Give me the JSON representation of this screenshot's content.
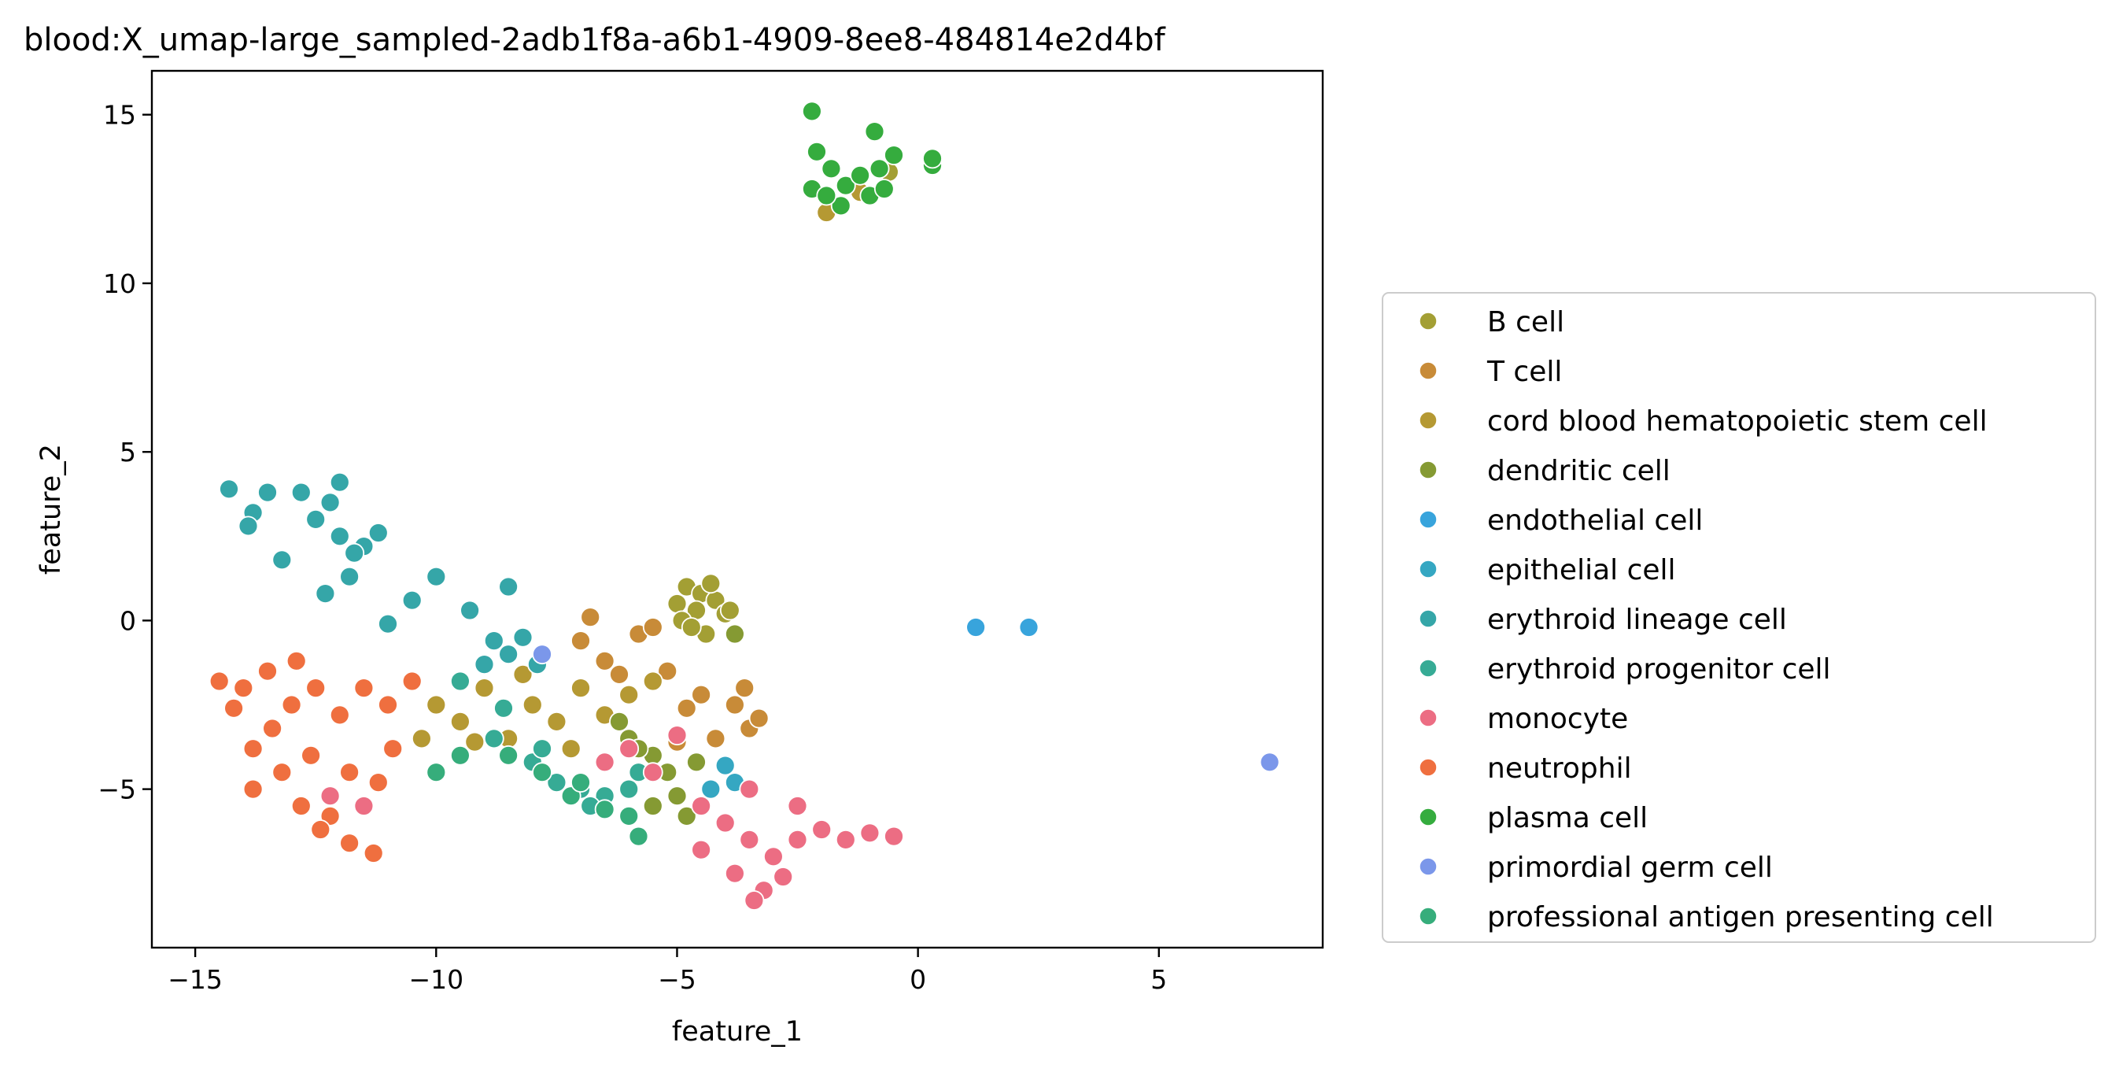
{
  "chart_data": {
    "type": "scatter",
    "title": "blood:X_umap-large_sampled-2adb1f8a-a6b1-4909-8ee8-484814e2d4bf",
    "xlabel": "feature_1",
    "ylabel": "feature_2",
    "xlim": [
      -15.9,
      8.4
    ],
    "ylim": [
      -9.7,
      16.3
    ],
    "xticks": [
      -15,
      -10,
      -5,
      0,
      5
    ],
    "yticks": [
      15,
      10,
      5,
      0,
      -5
    ],
    "xtick_labels": [
      "−15",
      "−10",
      "−5",
      "0",
      "5"
    ],
    "ytick_labels": [
      "15",
      "10",
      "5",
      "0",
      "−5"
    ],
    "grid": false,
    "legend_position": "right",
    "series": [
      {
        "name": "B cell",
        "color": "#a39f34",
        "points": [
          [
            -4.8,
            1.0
          ],
          [
            -4.5,
            0.8
          ],
          [
            -4.2,
            0.6
          ],
          [
            -4.6,
            0.3
          ],
          [
            -4.0,
            0.2
          ],
          [
            -5.0,
            0.5
          ],
          [
            -4.3,
            1.1
          ],
          [
            -4.9,
            0.0
          ],
          [
            -4.4,
            -0.4
          ],
          [
            -0.6,
            13.3
          ],
          [
            -3.9,
            0.3
          ],
          [
            -4.7,
            -0.2
          ]
        ]
      },
      {
        "name": "T cell",
        "color": "#c88b38",
        "points": [
          [
            -7.0,
            -0.6
          ],
          [
            -6.5,
            -1.2
          ],
          [
            -5.8,
            -0.4
          ],
          [
            -5.2,
            -1.5
          ],
          [
            -4.5,
            -2.2
          ],
          [
            -3.8,
            -2.5
          ],
          [
            -3.5,
            -3.2
          ],
          [
            -4.2,
            -3.5
          ],
          [
            -6.8,
            0.1
          ],
          [
            -5.5,
            -0.2
          ],
          [
            -6.2,
            -1.6
          ],
          [
            -3.6,
            -2.0
          ],
          [
            -4.8,
            -2.6
          ],
          [
            -5.0,
            -3.6
          ],
          [
            -3.3,
            -2.9
          ]
        ]
      },
      {
        "name": "cord blood hematopoietic stem cell",
        "color": "#b59933",
        "points": [
          [
            -10.0,
            -2.5
          ],
          [
            -9.5,
            -3.0
          ],
          [
            -9.0,
            -2.0
          ],
          [
            -8.5,
            -3.5
          ],
          [
            -8.0,
            -2.5
          ],
          [
            -7.5,
            -3.0
          ],
          [
            -7.0,
            -2.0
          ],
          [
            -6.5,
            -2.8
          ],
          [
            -6.0,
            -2.2
          ],
          [
            -5.5,
            -1.8
          ],
          [
            -9.2,
            -3.6
          ],
          [
            -8.2,
            -1.6
          ],
          [
            -10.3,
            -3.5
          ],
          [
            -7.2,
            -3.8
          ],
          [
            -1.9,
            12.1
          ],
          [
            -1.2,
            12.7
          ]
        ]
      },
      {
        "name": "dendritic cell",
        "color": "#859a33",
        "points": [
          [
            -6.0,
            -3.5
          ],
          [
            -5.5,
            -4.0
          ],
          [
            -5.2,
            -4.5
          ],
          [
            -5.0,
            -5.2
          ],
          [
            -4.8,
            -5.8
          ],
          [
            -5.5,
            -5.5
          ],
          [
            -6.2,
            -3.0
          ],
          [
            -4.3,
            -5.0
          ],
          [
            -5.8,
            -3.8
          ],
          [
            -3.8,
            -0.4
          ],
          [
            -4.6,
            -4.2
          ]
        ]
      },
      {
        "name": "endothelial cell",
        "color": "#38a4dc",
        "points": [
          [
            1.2,
            -0.2
          ],
          [
            2.3,
            -0.2
          ]
        ]
      },
      {
        "name": "epithelial cell",
        "color": "#35a7c2",
        "points": [
          [
            -4.0,
            -4.3
          ],
          [
            -4.3,
            -5.0
          ],
          [
            -3.8,
            -4.8
          ]
        ]
      },
      {
        "name": "erythroid lineage cell",
        "color": "#35a6a8",
        "points": [
          [
            -14.3,
            3.9
          ],
          [
            -13.5,
            3.8
          ],
          [
            -12.8,
            3.8
          ],
          [
            -12.2,
            3.5
          ],
          [
            -12.0,
            4.1
          ],
          [
            -12.5,
            3.0
          ],
          [
            -12.0,
            2.5
          ],
          [
            -11.5,
            2.2
          ],
          [
            -11.2,
            2.6
          ],
          [
            -11.8,
            1.3
          ],
          [
            -12.3,
            0.8
          ],
          [
            -11.0,
            -0.1
          ],
          [
            -10.5,
            0.6
          ],
          [
            -10.0,
            1.3
          ],
          [
            -9.3,
            0.3
          ],
          [
            -8.5,
            1.0
          ],
          [
            -13.8,
            3.2
          ],
          [
            -13.2,
            1.8
          ],
          [
            -13.9,
            2.8
          ],
          [
            -11.7,
            2.0
          ],
          [
            -8.8,
            -0.6
          ],
          [
            -8.5,
            -1.0
          ],
          [
            -8.2,
            -0.5
          ],
          [
            -7.9,
            -1.3
          ],
          [
            -9.0,
            -1.3
          ]
        ]
      },
      {
        "name": "erythroid progenitor cell",
        "color": "#36ab95",
        "points": [
          [
            -8.8,
            -3.5
          ],
          [
            -8.0,
            -4.2
          ],
          [
            -7.5,
            -4.8
          ],
          [
            -7.0,
            -5.0
          ],
          [
            -6.5,
            -5.2
          ],
          [
            -6.0,
            -5.0
          ],
          [
            -7.8,
            -3.8
          ],
          [
            -6.8,
            -5.5
          ],
          [
            -9.5,
            -1.8
          ],
          [
            -8.6,
            -2.6
          ],
          [
            -5.8,
            -4.5
          ]
        ]
      },
      {
        "name": "monocyte",
        "color": "#ec6d83",
        "points": [
          [
            -4.5,
            -5.5
          ],
          [
            -4.0,
            -6.0
          ],
          [
            -3.5,
            -6.5
          ],
          [
            -3.0,
            -7.0
          ],
          [
            -2.5,
            -6.5
          ],
          [
            -2.0,
            -6.2
          ],
          [
            -1.5,
            -6.5
          ],
          [
            -1.0,
            -6.3
          ],
          [
            -0.5,
            -6.4
          ],
          [
            -3.8,
            -7.5
          ],
          [
            -3.2,
            -8.0
          ],
          [
            -2.8,
            -7.6
          ],
          [
            -4.5,
            -6.8
          ],
          [
            -3.5,
            -5.0
          ],
          [
            -2.5,
            -5.5
          ],
          [
            -6.0,
            -3.8
          ],
          [
            -5.5,
            -4.5
          ],
          [
            -5.0,
            -3.4
          ],
          [
            -6.5,
            -4.2
          ],
          [
            -12.2,
            -5.2
          ],
          [
            -11.5,
            -5.5
          ],
          [
            -3.4,
            -8.3
          ]
        ]
      },
      {
        "name": "neutrophil",
        "color": "#ef6f3f",
        "points": [
          [
            -14.5,
            -1.8
          ],
          [
            -14.0,
            -2.0
          ],
          [
            -13.5,
            -1.5
          ],
          [
            -13.0,
            -2.5
          ],
          [
            -12.5,
            -2.0
          ],
          [
            -12.0,
            -2.8
          ],
          [
            -11.5,
            -2.0
          ],
          [
            -11.0,
            -2.5
          ],
          [
            -10.5,
            -1.8
          ],
          [
            -13.8,
            -3.8
          ],
          [
            -13.2,
            -4.5
          ],
          [
            -12.6,
            -4.0
          ],
          [
            -13.8,
            -5.0
          ],
          [
            -12.8,
            -5.5
          ],
          [
            -12.2,
            -5.8
          ],
          [
            -11.8,
            -4.5
          ],
          [
            -11.2,
            -4.8
          ],
          [
            -11.8,
            -6.6
          ],
          [
            -11.3,
            -6.9
          ],
          [
            -14.2,
            -2.6
          ],
          [
            -12.9,
            -1.2
          ],
          [
            -12.4,
            -6.2
          ],
          [
            -13.4,
            -3.2
          ],
          [
            -10.9,
            -3.8
          ]
        ]
      },
      {
        "name": "plasma cell",
        "color": "#35ac3e",
        "points": [
          [
            -2.2,
            15.1
          ],
          [
            -2.1,
            13.9
          ],
          [
            -1.8,
            13.4
          ],
          [
            -1.5,
            12.9
          ],
          [
            -1.0,
            12.6
          ],
          [
            -0.8,
            13.4
          ],
          [
            -0.5,
            13.8
          ],
          [
            -0.9,
            14.5
          ],
          [
            0.3,
            13.5
          ],
          [
            -2.2,
            12.8
          ],
          [
            -1.6,
            12.3
          ],
          [
            -1.2,
            13.2
          ],
          [
            0.3,
            13.7
          ],
          [
            -0.7,
            12.8
          ],
          [
            -1.9,
            12.6
          ]
        ]
      },
      {
        "name": "primordial germ cell",
        "color": "#7b97ea",
        "points": [
          [
            7.3,
            -4.2
          ],
          [
            -7.8,
            -1.0
          ]
        ]
      },
      {
        "name": "professional antigen presenting cell",
        "color": "#36ad7b",
        "points": [
          [
            -8.5,
            -4.0
          ],
          [
            -7.8,
            -4.5
          ],
          [
            -7.2,
            -5.2
          ],
          [
            -6.5,
            -5.6
          ],
          [
            -6.0,
            -5.8
          ],
          [
            -5.8,
            -6.4
          ],
          [
            -9.5,
            -4.0
          ],
          [
            -10.0,
            -4.5
          ],
          [
            -7.0,
            -4.8
          ]
        ]
      }
    ]
  }
}
